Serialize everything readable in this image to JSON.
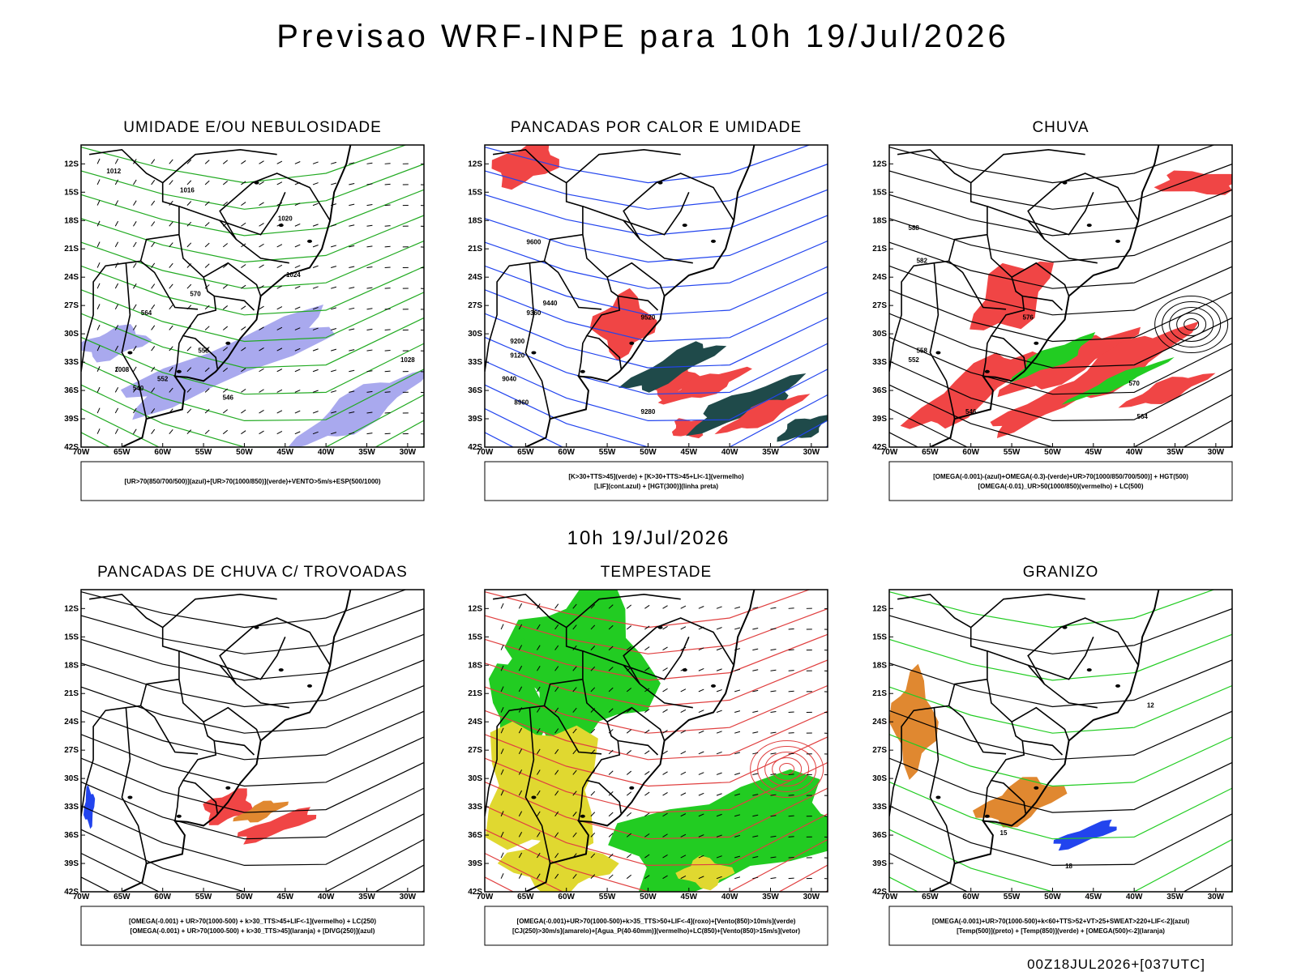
{
  "title": "Previsao WRF-INPE  para 10h 19/Jul/2026",
  "subtitle": "10h 19/Jul/2026",
  "footer": "00Z18JUL2026+[037UTC]",
  "map_axes": {
    "xlim": [
      -70,
      -28
    ],
    "ylim": [
      -42,
      -10
    ],
    "xticks": [
      {
        "value": -70,
        "label": "70W"
      },
      {
        "value": -65,
        "label": "65W"
      },
      {
        "value": -60,
        "label": "60W"
      },
      {
        "value": -55,
        "label": "55W"
      },
      {
        "value": -50,
        "label": "50W"
      },
      {
        "value": -45,
        "label": "45W"
      },
      {
        "value": -40,
        "label": "40W"
      },
      {
        "value": -35,
        "label": "35W"
      },
      {
        "value": -30,
        "label": "30W"
      }
    ],
    "yticks": [
      {
        "value": -12,
        "label": "12S"
      },
      {
        "value": -15,
        "label": "15S"
      },
      {
        "value": -18,
        "label": "18S"
      },
      {
        "value": -21,
        "label": "21S"
      },
      {
        "value": -24,
        "label": "24S"
      },
      {
        "value": -27,
        "label": "27S"
      },
      {
        "value": -30,
        "label": "30S"
      },
      {
        "value": -33,
        "label": "33S"
      },
      {
        "value": -36,
        "label": "36S"
      },
      {
        "value": -39,
        "label": "39S"
      },
      {
        "value": -42,
        "label": "42S"
      }
    ]
  },
  "panels": [
    {
      "title": "UMIDADE E/OU NEBULOSIDADE",
      "legend": [
        "[UR>70(850/700/500)](azul)+[UR>70(1000/850)](verde)+VENTO>5m/s+ESP(500/1000)"
      ],
      "contour_labels": [
        "1012",
        "1016",
        "1020",
        "1024",
        "1028",
        "1008",
        "570",
        "564",
        "558",
        "552",
        "546",
        "540"
      ]
    },
    {
      "title": "PANCADAS POR CALOR E UMIDADE",
      "legend": [
        "[K>30+TTS>45](verde) + [K>30+TTS>45+LI<-1](vermelho)",
        "[LIF](cont.azul) + [HGT(300)](linha preta)"
      ],
      "contour_labels": [
        "9600",
        "9520",
        "9440",
        "9360",
        "9280",
        "9200",
        "9120",
        "9040",
        "8960"
      ]
    },
    {
      "title": "CHUVA",
      "legend": [
        "[OMEGA(-0.001)-(azul)+OMEGA(-0.3)-(verde)+UR>70(1000/850/700/500)] + HGT(500)",
        "[OMEGA(-0.01)_UR>50(1000/850)(vermelho) + LC(500)"
      ],
      "contour_labels": [
        "588",
        "582",
        "576",
        "570",
        "564",
        "558",
        "552",
        "546"
      ]
    },
    {
      "title": "PANCADAS DE CHUVA C/ TROVOADAS",
      "legend": [
        "[OMEGA(-0.001) + UR>70(1000-500) + k>30_TTS>45+LIF<-1](vermelho) + LC(250)",
        "[OMEGA(-0.001) + UR>70(1000-500) + k>30_TTS>45](laranja) + [DIVG(250)](azul)"
      ]
    },
    {
      "title": "TEMPESTADE",
      "legend": [
        "[OMEGA(-0.001)+UR>70(1000-500)+k>35_TTS>50+LIF<-4](roxo)+[Vento(850)>10m/s](verde)",
        "[CJ(250)>30m/s](amarelo)+[Agua_P(40-60mm)](vermelho)+LC(850)+[Vento(850)>15m/s](vetor)"
      ]
    },
    {
      "title": "GRANIZO",
      "legend": [
        "[OMEGA(-0.001)+UR>70(1000-500)+k<60+TTS>52+VT>25+SWEAT>220+LIF<-2](azul)",
        "[Temp(500)](preto) + [Temp(850)](verde) + [OMEGA(500)<-2](laranja)"
      ],
      "contour_labels": [
        "12",
        "15",
        "18"
      ]
    }
  ]
}
